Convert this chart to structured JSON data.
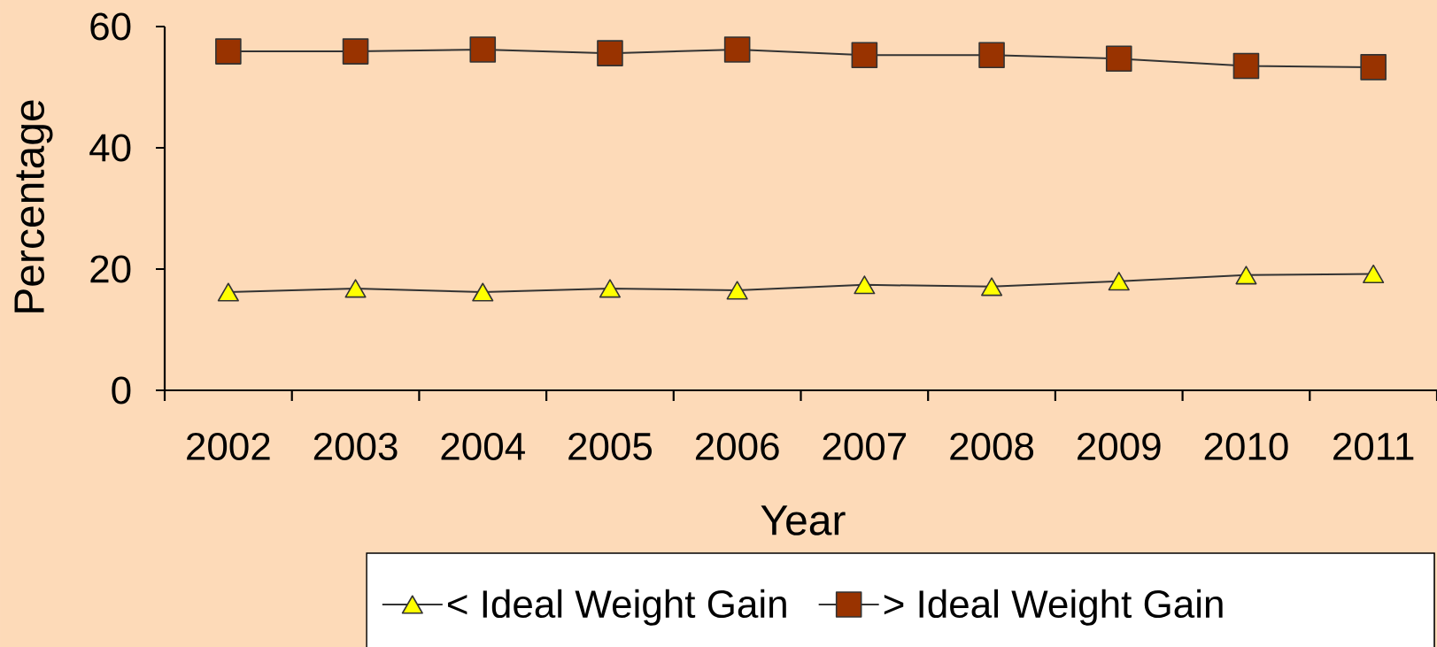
{
  "chart_data": {
    "type": "line",
    "xlabel": "Year",
    "ylabel": "Percentage",
    "categories": [
      "2002",
      "2003",
      "2004",
      "2005",
      "2006",
      "2007",
      "2008",
      "2009",
      "2010",
      "2011"
    ],
    "series": [
      {
        "name": "< Ideal Weight Gain",
        "color": "#ffff00",
        "marker": "triangle",
        "values": [
          16.2,
          16.8,
          16.2,
          16.8,
          16.5,
          17.4,
          17.1,
          18.0,
          19.0,
          19.2
        ]
      },
      {
        "name": "> Ideal Weight Gain",
        "color": "#993300",
        "marker": "square",
        "values": [
          55.9,
          55.9,
          56.2,
          55.6,
          56.2,
          55.3,
          55.3,
          54.7,
          53.5,
          53.3
        ]
      }
    ],
    "ylim": [
      0,
      60
    ],
    "yticks": [
      0,
      20,
      40,
      60
    ],
    "legend": "bottom"
  }
}
